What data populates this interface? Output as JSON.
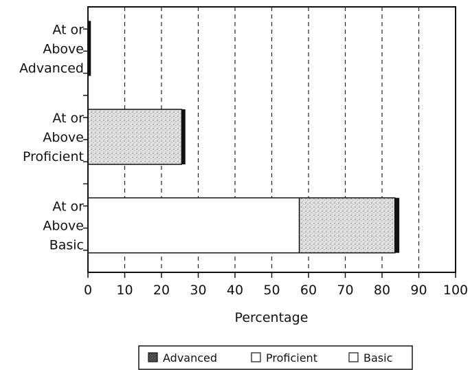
{
  "chart_data": {
    "type": "bar",
    "orientation": "horizontal",
    "stacked": true,
    "categories": [
      [
        "At or",
        "Above",
        "Advanced"
      ],
      [
        "At or",
        "Above",
        "Proficient"
      ],
      [
        "At or",
        "Above",
        "Basic"
      ]
    ],
    "series": [
      {
        "name": "Basic",
        "values": [
          0,
          0,
          57.5
        ],
        "color": "#ffffff",
        "pattern": "none"
      },
      {
        "name": "Proficient",
        "values": [
          0,
          25.5,
          26
        ],
        "color": "#d8d8d8",
        "pattern": "stipple"
      },
      {
        "name": "Advanced",
        "values": [
          0.8,
          1,
          1.2
        ],
        "color": "#111111",
        "pattern": "solid"
      }
    ],
    "xlabel": "Percentage",
    "ylabel": "",
    "title": "",
    "xlim": [
      0,
      100
    ],
    "xticks": [
      0,
      10,
      20,
      30,
      40,
      50,
      60,
      70,
      80,
      90,
      100
    ],
    "grid": "vertical-dashed",
    "legend": {
      "placement": "bottom",
      "entries": [
        "Advanced",
        "Proficient",
        "Basic"
      ]
    }
  }
}
